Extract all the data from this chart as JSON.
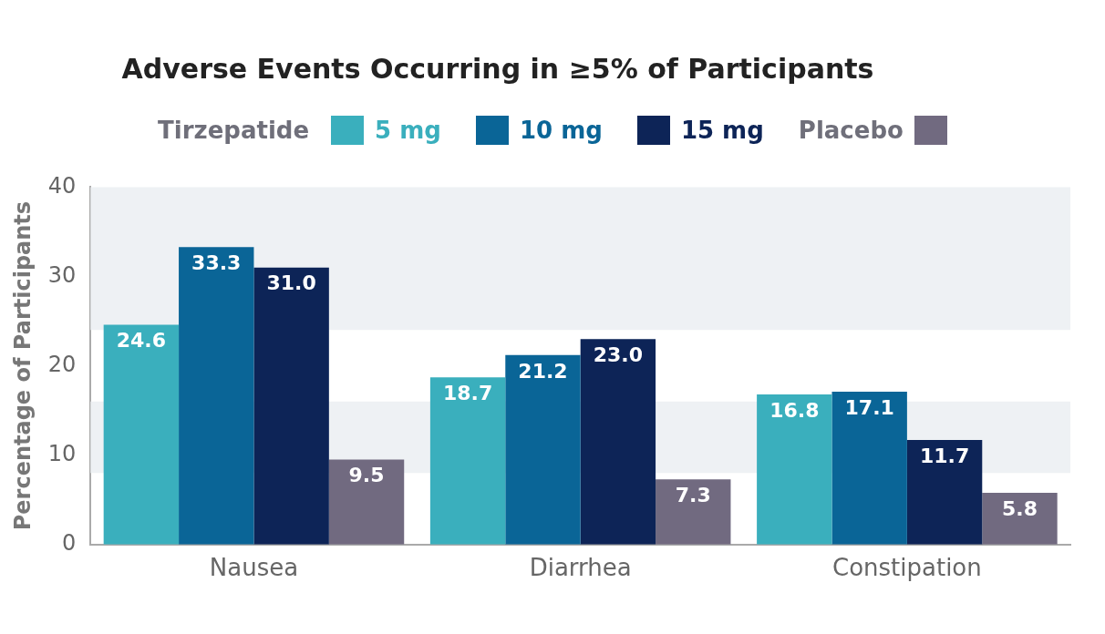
{
  "chart_data": {
    "type": "bar",
    "title": "Adverse Events Occurring in ≥5% of Participants",
    "legend_title": "Tirzepatide",
    "ylabel": "Percentage of Participants",
    "categories": [
      "Nausea",
      "Diarrhea",
      "Constipation"
    ],
    "series": [
      {
        "name": "5 mg",
        "color": "#3aafbd",
        "values": [
          24.6,
          18.7,
          16.8
        ],
        "value_labels": [
          "24.6",
          "18.7",
          "16.8"
        ]
      },
      {
        "name": "10 mg",
        "color": "#0a6597",
        "values": [
          33.3,
          21.2,
          17.1
        ],
        "value_labels": [
          "33.3",
          "21.2",
          "17.1"
        ]
      },
      {
        "name": "15 mg",
        "color": "#0d2457",
        "values": [
          31.0,
          23.0,
          11.7
        ],
        "value_labels": [
          "31.0",
          "23.0",
          "11.7"
        ]
      },
      {
        "name": "Placebo",
        "color": "#716a80",
        "values": [
          9.5,
          7.3,
          5.8
        ],
        "value_labels": [
          "9.5",
          "7.3",
          "5.8"
        ]
      }
    ],
    "ylim": [
      0,
      40
    ],
    "yticks": [
      0,
      10,
      20,
      30,
      40
    ],
    "legend": "top",
    "grid": false,
    "bands": [
      {
        "axis": "y",
        "from": 8,
        "to": 16,
        "color": "#eef1f4"
      },
      {
        "axis": "y",
        "from": 24,
        "to": 40,
        "color": "#eef1f4"
      }
    ]
  }
}
